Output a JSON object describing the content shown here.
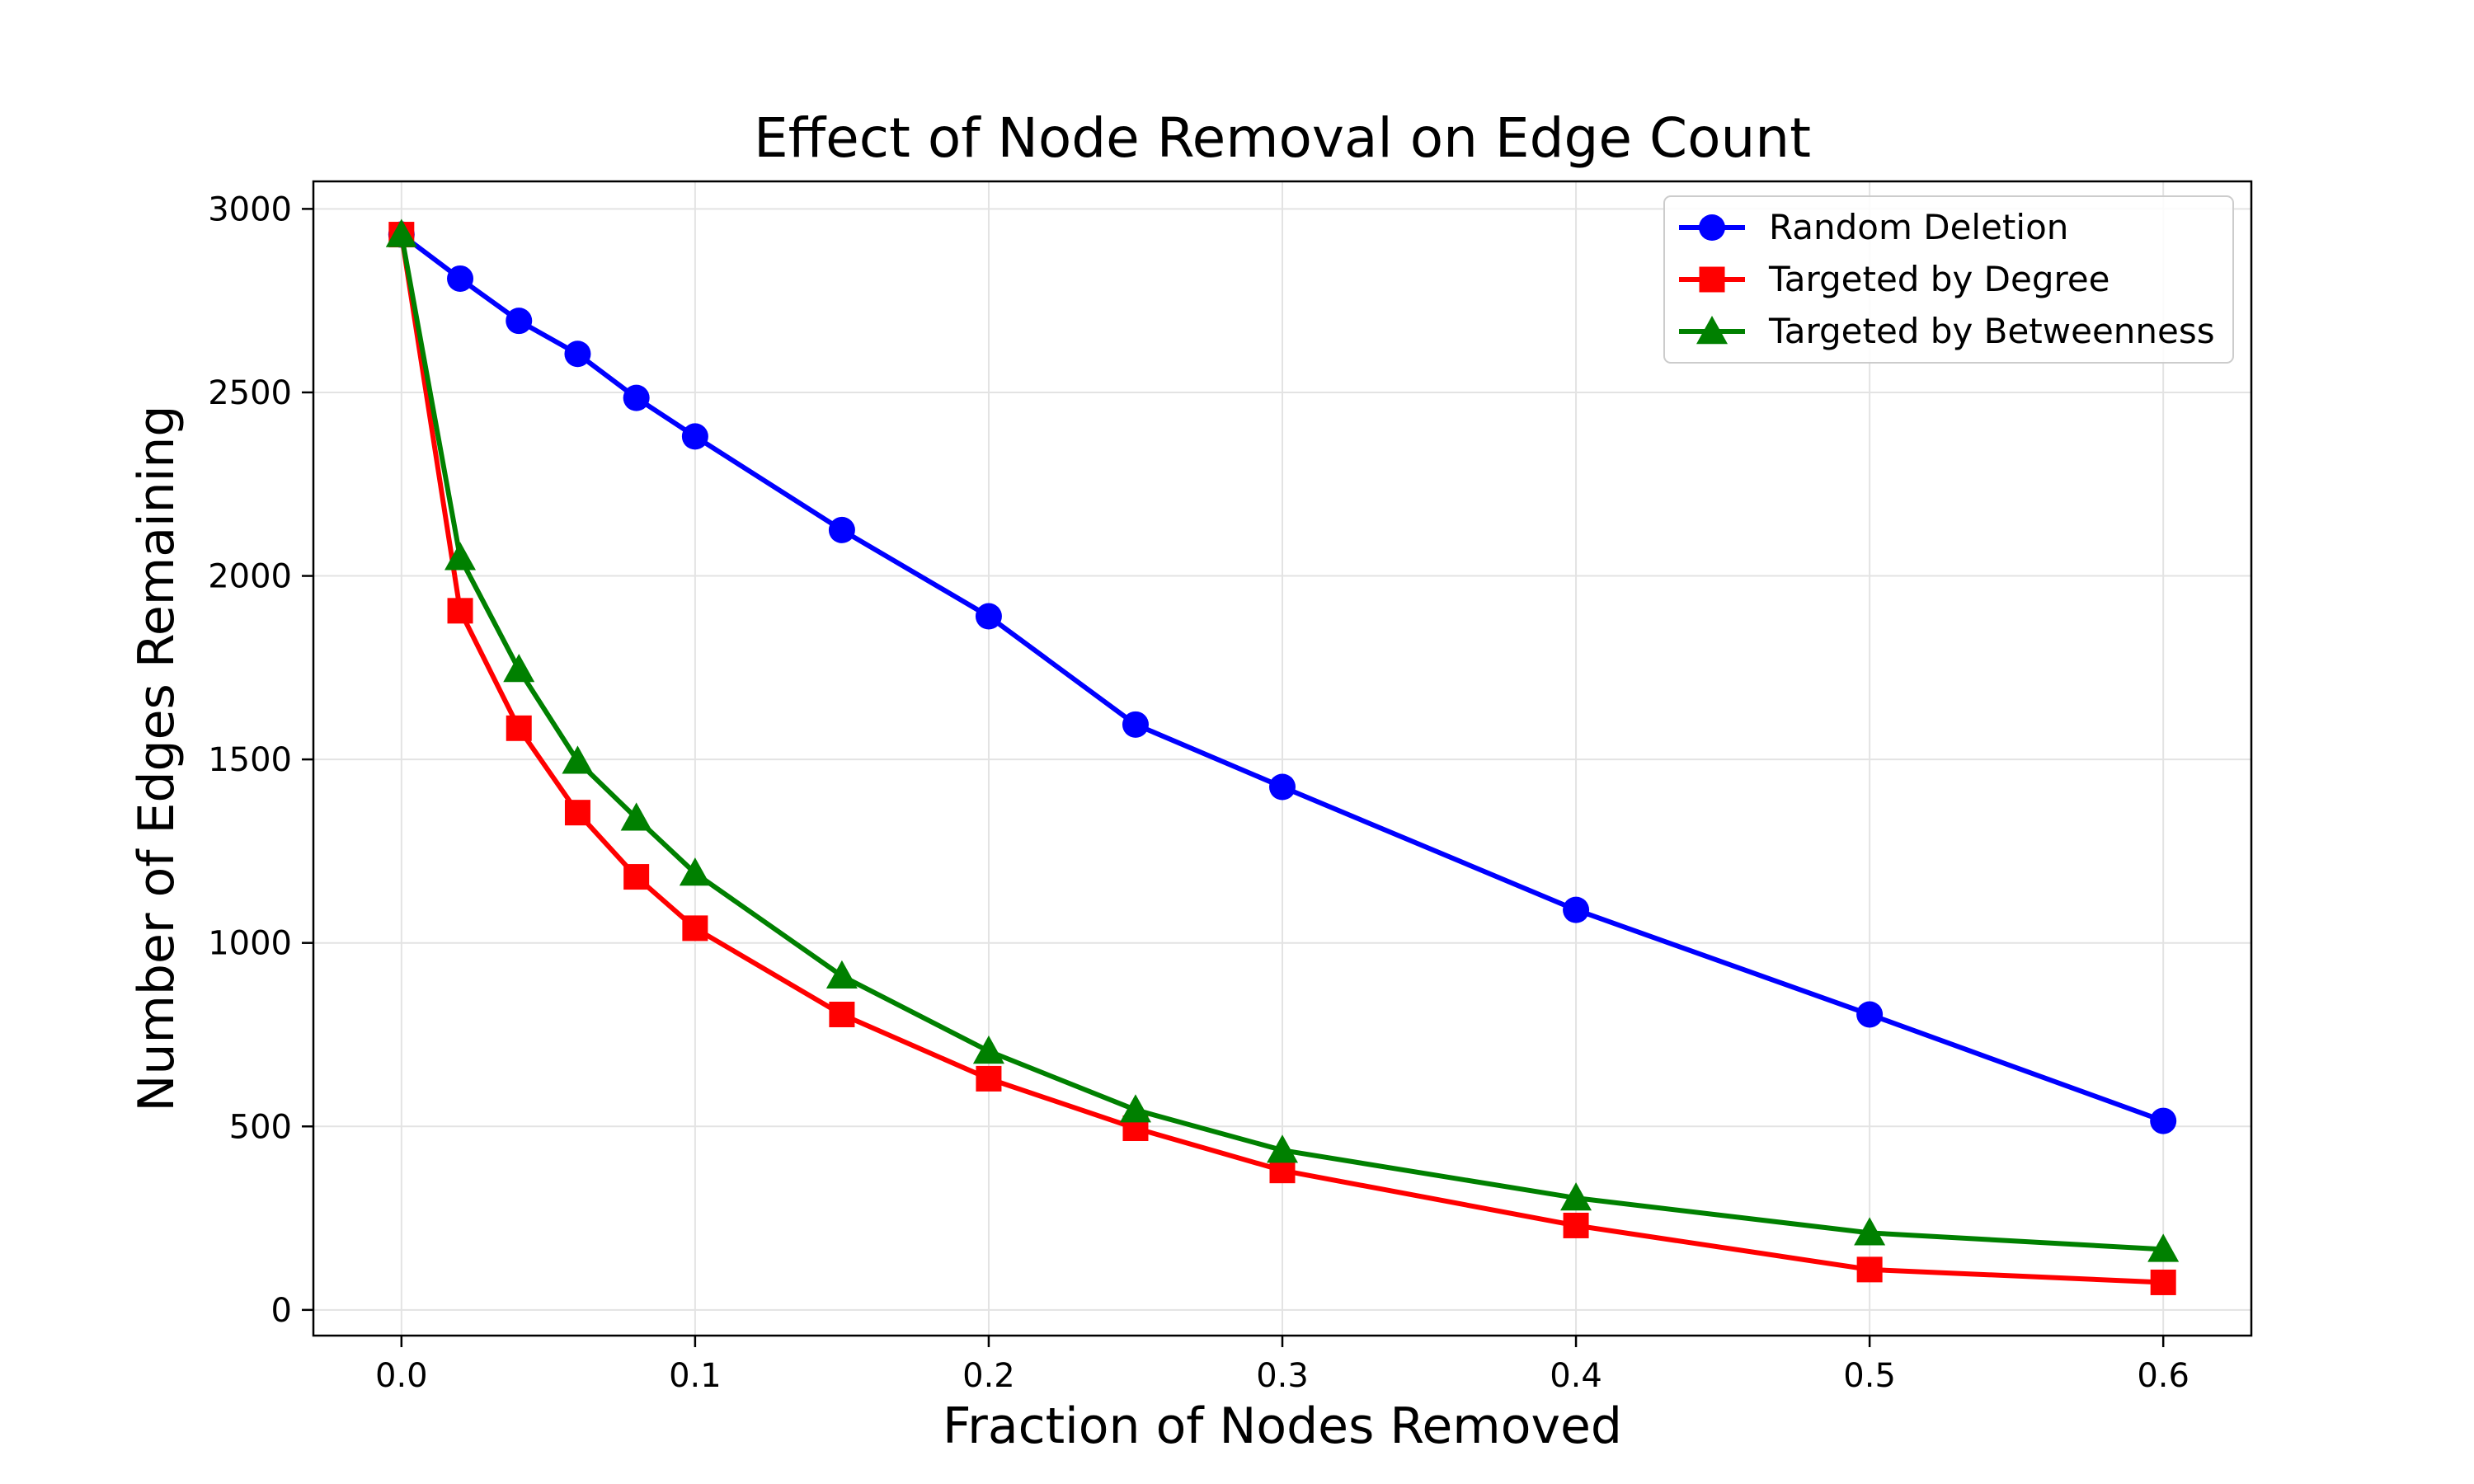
{
  "chart_data": {
    "type": "line",
    "title": "Effect of Node Removal on Edge Count",
    "xlabel": "Fraction of Nodes Removed",
    "ylabel": "Number of Edges Remaining",
    "xlim": [
      -0.03,
      0.63
    ],
    "ylim": [
      -70,
      3075
    ],
    "xticks": [
      0.0,
      0.1,
      0.2,
      0.3,
      0.4,
      0.5,
      0.6
    ],
    "xtick_labels": [
      "0.0",
      "0.1",
      "0.2",
      "0.3",
      "0.4",
      "0.5",
      "0.6"
    ],
    "yticks": [
      0,
      500,
      1000,
      1500,
      2000,
      2500,
      3000
    ],
    "ytick_labels": [
      "0",
      "500",
      "1000",
      "1500",
      "2000",
      "2500",
      "3000"
    ],
    "grid": true,
    "legend_position": "top-right",
    "x": [
      0.0,
      0.02,
      0.04,
      0.06,
      0.08,
      0.1,
      0.15,
      0.2,
      0.25,
      0.3,
      0.4,
      0.5,
      0.6
    ],
    "series": [
      {
        "name": "Random Deletion",
        "color": "#0000ff",
        "marker": "circle",
        "values": [
          2930,
          2810,
          2695,
          2605,
          2485,
          2380,
          2125,
          1890,
          1595,
          1425,
          1090,
          805,
          515
        ]
      },
      {
        "name": "Targeted by Degree",
        "color": "#ff0000",
        "marker": "square",
        "values": [
          2930,
          1905,
          1585,
          1355,
          1180,
          1040,
          805,
          630,
          495,
          380,
          230,
          110,
          75
        ]
      },
      {
        "name": "Targeted by Betweenness",
        "color": "#008000",
        "marker": "triangle",
        "values": [
          2930,
          2050,
          1745,
          1495,
          1340,
          1190,
          910,
          705,
          545,
          435,
          305,
          210,
          165
        ]
      }
    ]
  }
}
